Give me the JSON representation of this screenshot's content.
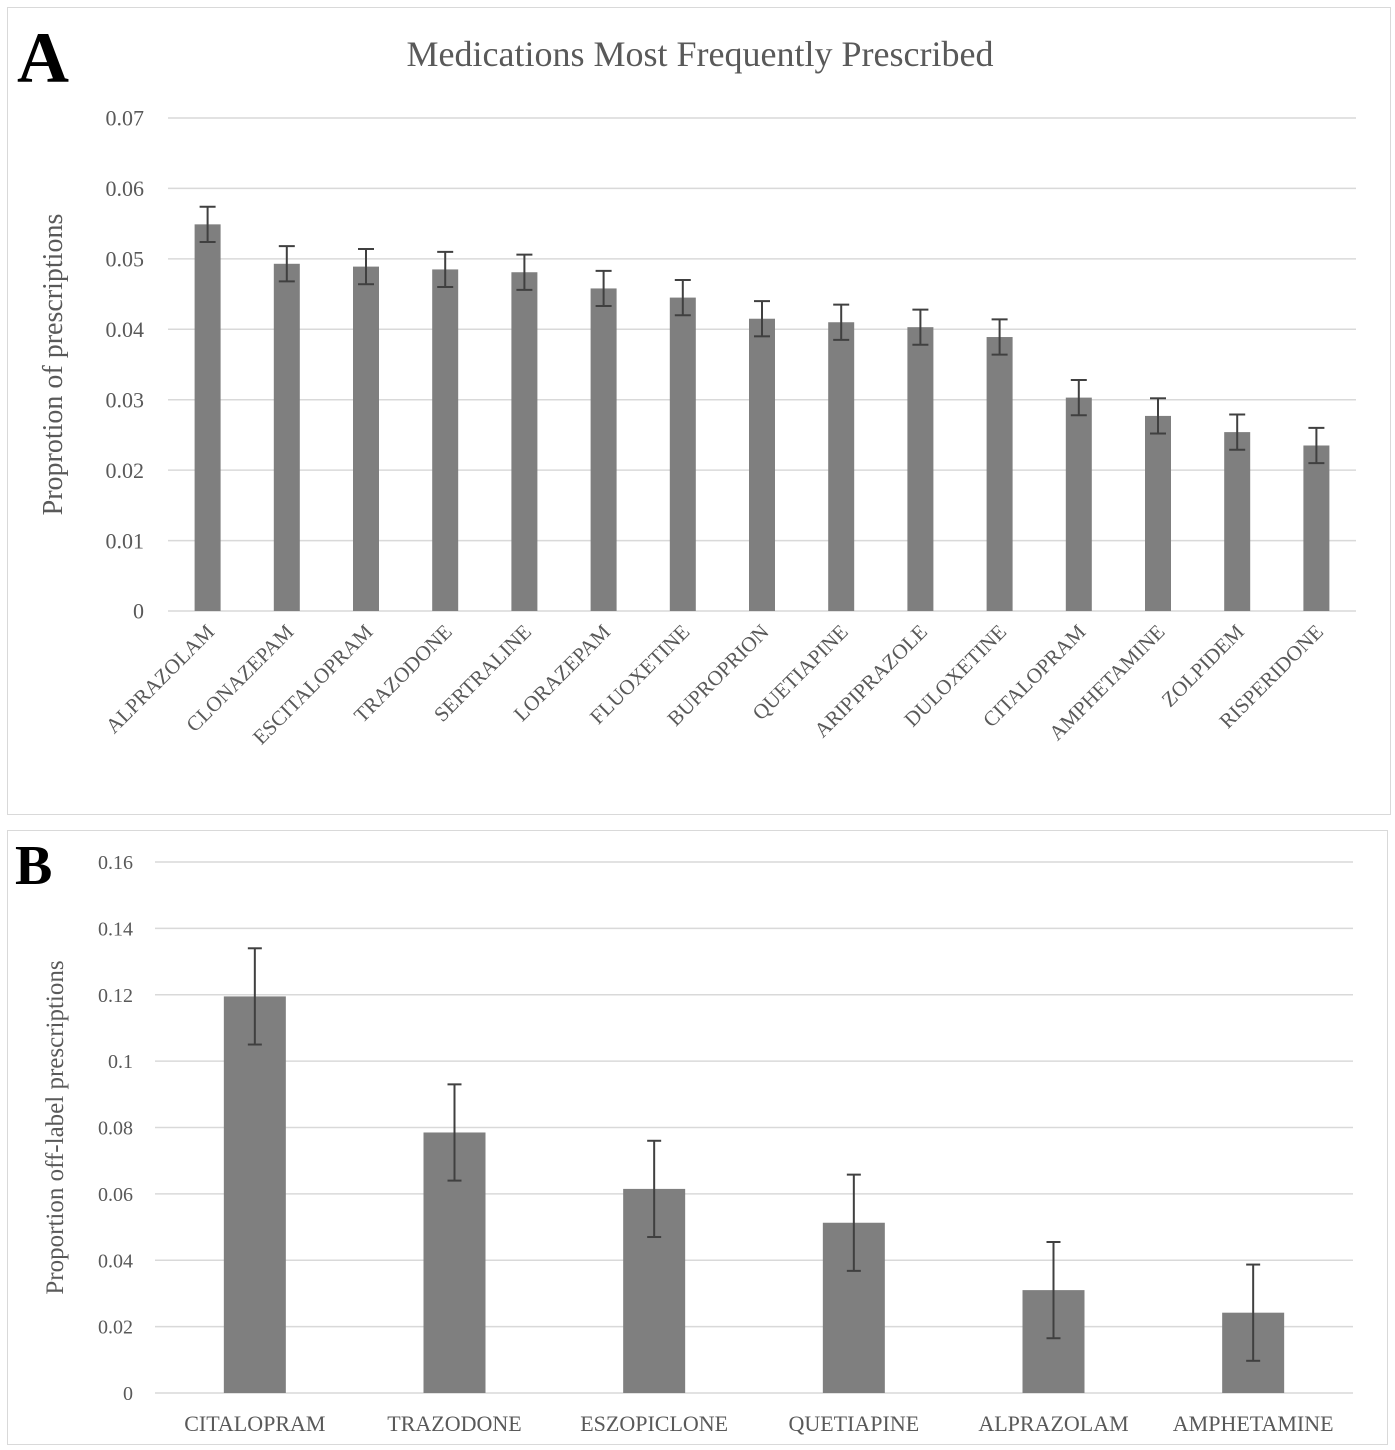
{
  "panels": {
    "a_letter": "A",
    "b_letter": "B"
  },
  "colors": {
    "bar": "#7f7f7f",
    "error_bar": "#404040",
    "grid": "#d9d9d9",
    "text": "#595959"
  },
  "chart_data": [
    {
      "type": "bar",
      "title": "Medications Most Frequently Prescribed",
      "xlabel": "",
      "ylabel": "Proprotion of prescriptions",
      "ylim": [
        0,
        0.07
      ],
      "yticks": [
        "0",
        "0.01",
        "0.02",
        "0.03",
        "0.04",
        "0.05",
        "0.06",
        "0.07"
      ],
      "grid": true,
      "categories": [
        "ALPRAZOLAM",
        "CLONAZEPAM",
        "ESCITALOPRAM",
        "TRAZODONE",
        "SERTRALINE",
        "LORAZEPAM",
        "FLUOXETINE",
        "BUPROPRION",
        "QUETIAPINE",
        "ARIPIPRAZOLE",
        "DULOXETINE",
        "CITALOPRAM",
        "AMPHETAMINE",
        "ZOLPIDEM",
        "RISPERIDONE"
      ],
      "values": [
        0.0549,
        0.0493,
        0.0489,
        0.0485,
        0.0481,
        0.0458,
        0.0445,
        0.0415,
        0.041,
        0.0403,
        0.0389,
        0.0303,
        0.0277,
        0.0254,
        0.0235
      ],
      "error": [
        0.0025,
        0.0025,
        0.0025,
        0.0025,
        0.0025,
        0.0025,
        0.0025,
        0.0025,
        0.0025,
        0.0025,
        0.0025,
        0.0025,
        0.0025,
        0.0025,
        0.0025
      ]
    },
    {
      "type": "bar",
      "title": "",
      "xlabel": "",
      "ylabel": "Proportion off-label prescriptions",
      "ylim": [
        0,
        0.16
      ],
      "yticks": [
        "0",
        "0.02",
        "0.04",
        "0.06",
        "0.08",
        "0.1",
        "0.12",
        "0.14",
        "0.16"
      ],
      "grid": true,
      "categories": [
        "CITALOPRAM",
        "TRAZODONE",
        "ESZOPICLONE",
        "QUETIAPINE",
        "ALPRAZOLAM",
        "AMPHETAMINE"
      ],
      "values": [
        0.1195,
        0.0785,
        0.0615,
        0.0513,
        0.031,
        0.0242
      ],
      "error": [
        0.0145,
        0.0145,
        0.0145,
        0.0145,
        0.0145,
        0.0145
      ]
    }
  ]
}
